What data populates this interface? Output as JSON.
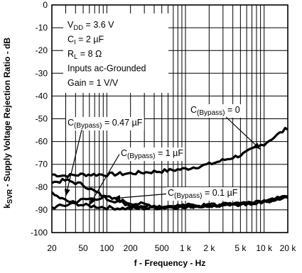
{
  "chart_data": {
    "type": "line",
    "title": "",
    "xlabel": "f - Frequency - Hz",
    "ylabel_main": "k",
    "ylabel_sub": "SVR",
    "ylabel_rest": " - Supply Voltage Rejection Ratio - dB",
    "xscale": "log",
    "xlim": [
      20,
      20000
    ],
    "ylim": [
      -100,
      0
    ],
    "grid": true,
    "x_ticks": [
      {
        "v": 20,
        "label": "20"
      },
      {
        "v": 50,
        "label": "50"
      },
      {
        "v": 100,
        "label": "100"
      },
      {
        "v": 200,
        "label": "200"
      },
      {
        "v": 500,
        "label": "500"
      },
      {
        "v": 1000,
        "label": "1 k"
      },
      {
        "v": 2000,
        "label": "2 k"
      },
      {
        "v": 5000,
        "label": "5 k"
      },
      {
        "v": 10000,
        "label": "10 k"
      },
      {
        "v": 20000,
        "label": "20 k"
      }
    ],
    "y_ticks": [
      {
        "v": 0,
        "label": "0"
      },
      {
        "v": -10,
        "label": "-10"
      },
      {
        "v": -20,
        "label": "-20"
      },
      {
        "v": -30,
        "label": "-30"
      },
      {
        "v": -40,
        "label": "-40"
      },
      {
        "v": -50,
        "label": "-50"
      },
      {
        "v": -60,
        "label": "-60"
      },
      {
        "v": -70,
        "label": "-70"
      },
      {
        "v": -80,
        "label": "-80"
      },
      {
        "v": -90,
        "label": "-90"
      },
      {
        "v": -100,
        "label": "-100"
      }
    ],
    "conditions": [
      {
        "main": "V",
        "sub": "DD",
        "rest": " = 3.6 V"
      },
      {
        "main": "C",
        "sub": "I",
        "rest": " = 2 µF"
      },
      {
        "main": "R",
        "sub": "L",
        "rest": " = 8 Ω"
      },
      {
        "main": "Inputs ac-Grounded",
        "sub": "",
        "rest": ""
      },
      {
        "main": "Gain = 1 V/V",
        "sub": "",
        "rest": ""
      }
    ],
    "series": [
      {
        "name": "C(Bypass) = 0",
        "x": [
          20,
          30,
          50,
          100,
          200,
          500,
          1000,
          2000,
          5000,
          10000,
          20000
        ],
        "y": [
          -74.5,
          -75,
          -74.5,
          -74.5,
          -74,
          -73,
          -72,
          -70,
          -66,
          -61,
          -54
        ]
      },
      {
        "name": "C(Bypass) = 0.47 µF",
        "x": [
          20,
          30,
          50,
          100,
          200,
          500,
          1000,
          2000,
          5000,
          10000,
          20000
        ],
        "y": [
          -78,
          -77,
          -79,
          -85,
          -88,
          -88.5,
          -88,
          -88,
          -87.5,
          -86.5,
          -84
        ]
      },
      {
        "name": "C(Bypass) = 1 µF",
        "x": [
          20,
          30,
          50,
          100,
          200,
          500,
          1000,
          2000,
          5000,
          10000,
          20000
        ],
        "y": [
          -83,
          -86,
          -88,
          -89,
          -89.5,
          -89,
          -88.5,
          -88,
          -87.5,
          -86.5,
          -84
        ]
      },
      {
        "name": "C(Bypass) = 0.1 µF",
        "x": [
          20,
          30,
          50,
          100,
          200,
          500,
          1000,
          2000,
          5000,
          10000,
          20000
        ],
        "y": [
          -89,
          -88,
          -85.5,
          -84.5,
          -87,
          -88.5,
          -88.5,
          -88,
          -87.5,
          -86.5,
          -84
        ]
      }
    ],
    "annotations": [
      {
        "main": "C",
        "sub": "(Bypass)",
        "rest": " = 0.47 µF"
      },
      {
        "main": "C",
        "sub": "(Bypass)",
        "rest": " = 0"
      },
      {
        "main": "C",
        "sub": "(Bypass)",
        "rest": " = 1 µF"
      },
      {
        "main": "C",
        "sub": "(Bypass)",
        "rest": " = 0.1 µF"
      }
    ]
  }
}
